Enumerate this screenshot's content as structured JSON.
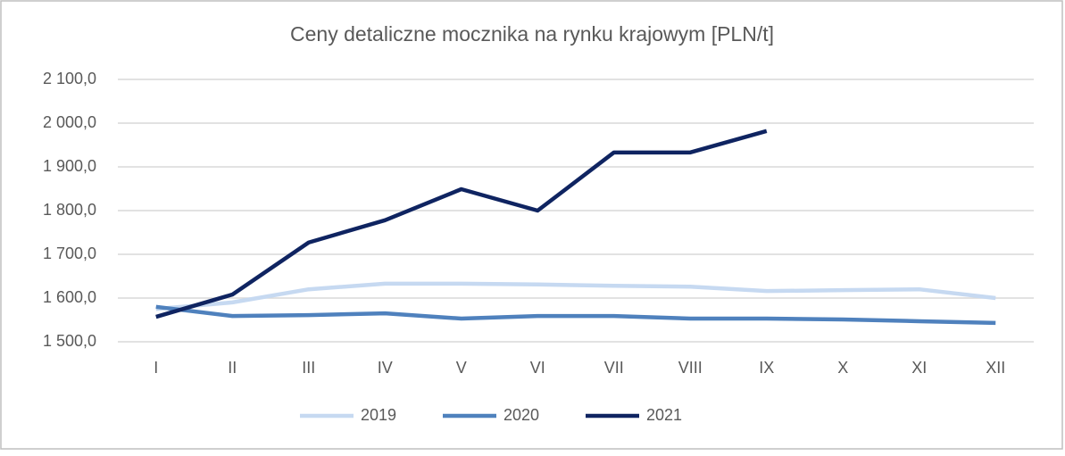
{
  "chart_data": {
    "type": "line",
    "title": "Ceny detaliczne mocznika na rynku krajowym [PLN/t]",
    "categories": [
      "I",
      "II",
      "III",
      "IV",
      "V",
      "VI",
      "VII",
      "VIII",
      "IX",
      "X",
      "XI",
      "XII"
    ],
    "series": [
      {
        "name": "2019",
        "color": "#c6d9f1",
        "values": [
          1575,
          1590,
          1620,
          1633,
          1633,
          1631,
          1628,
          1626,
          1616,
          1618,
          1620,
          1600
        ]
      },
      {
        "name": "2020",
        "color": "#4f81bd",
        "values": [
          1580,
          1559,
          1561,
          1565,
          1553,
          1559,
          1559,
          1553,
          1553,
          1551,
          1547,
          1543
        ]
      },
      {
        "name": "2021",
        "color": "#0f2461",
        "values": [
          1557,
          1608,
          1727,
          1778,
          1849,
          1800,
          1933,
          1933,
          1982,
          null,
          null,
          null
        ]
      }
    ],
    "ylim": [
      1500,
      2100
    ],
    "yticks": [
      {
        "value": 1500,
        "label": "1 500,0"
      },
      {
        "value": 1600,
        "label": "1 600,0"
      },
      {
        "value": 1700,
        "label": "1 700,0"
      },
      {
        "value": 1800,
        "label": "1 800,0"
      },
      {
        "value": 1900,
        "label": "1 900,0"
      },
      {
        "value": 2000,
        "label": "2 000,0"
      },
      {
        "value": 2100,
        "label": "2 100,0"
      }
    ],
    "grid": true,
    "legend": "bottom"
  }
}
